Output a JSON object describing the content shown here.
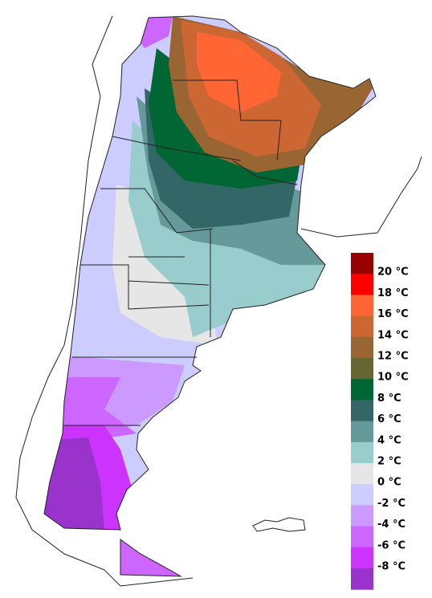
{
  "legend": {
    "colors": [
      "#990000",
      "#ff0000",
      "#ff6633",
      "#cc6633",
      "#996633",
      "#666633",
      "#006633",
      "#336666",
      "#669999",
      "#99cccc",
      "#e6e6e6",
      "#ccccff",
      "#cc99ff",
      "#cc66ff",
      "#cc33ff",
      "#9933cc"
    ],
    "labels": [
      "20 °C",
      "18 °C",
      "16 °C",
      "14 °C",
      "12 °C",
      "10 °C",
      "8 °C",
      "6 °C",
      "4 °C",
      "2 °C",
      "0 °C",
      "-2 °C",
      "-4 °C",
      "-6 °C",
      "-8 °C"
    ]
  }
}
